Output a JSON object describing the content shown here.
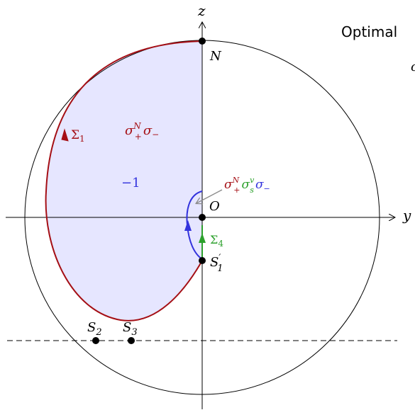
{
  "header_text": "Optimal",
  "header_fragment": "c",
  "axes": {
    "z_label": "z",
    "y_label": "y"
  },
  "points": {
    "N": "N",
    "O": "O",
    "S1_base": "S",
    "S1_sub": "1",
    "S1_prime": "′",
    "S2_base": "S",
    "S2_sub": "2",
    "S3_base": "S",
    "S3_sub": "3"
  },
  "curves": {
    "sigma1_base": "Σ",
    "sigma1_sub": "1",
    "sigma4_base": "Σ",
    "sigma4_sub": "4"
  },
  "region_labels": {
    "upper_sigma": "σ",
    "upper_plus": "+",
    "upper_N": "N",
    "upper_sigma2": "σ",
    "upper_minus": "−",
    "value": "−1"
  },
  "annotation": {
    "s1": "σ",
    "s1_sub": "+",
    "s1_sup": "N",
    "s2": "σ",
    "s2_sub": "s",
    "s2_sup": "v",
    "s3": "σ",
    "s3_sub": "−"
  },
  "colors": {
    "sigma1": "#a50f15",
    "sigma4": "#2ca02c",
    "blue": "#3333dd",
    "fill": "#e6e6ff",
    "gray": "#8c8c8c"
  }
}
